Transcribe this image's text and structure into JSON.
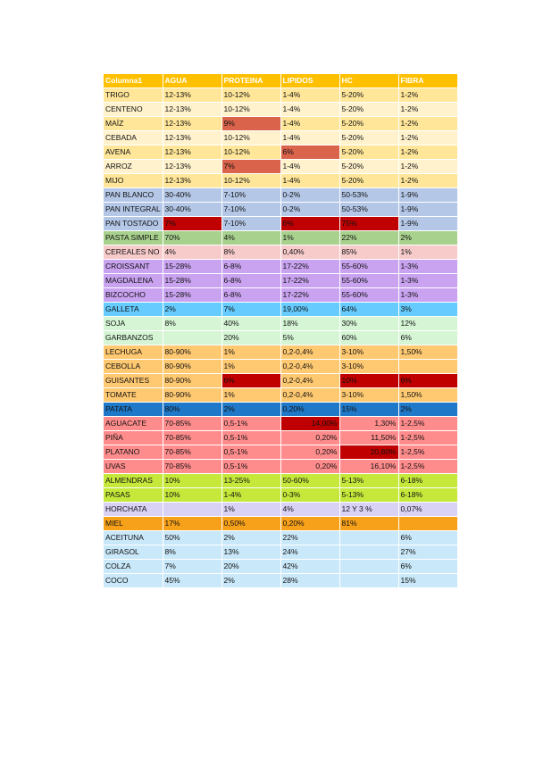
{
  "headers": [
    "Columna1",
    "AGUA",
    "PROTEINA",
    "LIPIDOS",
    "HC",
    "FIBRA"
  ],
  "header_color": "#FFC000",
  "rows": [
    {
      "color": "#FFE699",
      "cells": [
        "TRIGO",
        "12-13%",
        "10-12%",
        "1-4%",
        "5-20%",
        "1-2%"
      ]
    },
    {
      "color": "#FFF2CC",
      "cells": [
        "CENTENO",
        "12-13%",
        "10-12%",
        "1-4%",
        "5-20%",
        "1-2%"
      ]
    },
    {
      "color": "#FFE699",
      "cells": [
        "MAÍZ",
        "12-13%",
        "9%",
        "1-4%",
        "5-20%",
        "1-2%"
      ],
      "hl": {
        "2": "#D9634B"
      }
    },
    {
      "color": "#FFF2CC",
      "cells": [
        "CEBADA",
        "12-13%",
        "10-12%",
        "1-4%",
        "5-20%",
        "1-2%"
      ]
    },
    {
      "color": "#FFE699",
      "cells": [
        "AVENA",
        "12-13%",
        "10-12%",
        "6%",
        "5-20%",
        "1-2%"
      ],
      "hl": {
        "3": "#D9634B"
      }
    },
    {
      "color": "#FFF2CC",
      "cells": [
        "ARROZ",
        "12-13%",
        "7%",
        "1-4%",
        "5-20%",
        "1-2%"
      ],
      "hl": {
        "2": "#D9634B"
      }
    },
    {
      "color": "#FFE699",
      "cells": [
        "MIJO",
        "12-13%",
        "10-12%",
        "1-4%",
        "5-20%",
        "1-2%"
      ]
    },
    {
      "color": "#B4C7E7",
      "cells": [
        "PAN BLANCO",
        "30-40%",
        "7-10%",
        "0-2%",
        "50-53%",
        "1-9%"
      ]
    },
    {
      "color": "#B4C7E7",
      "cells": [
        "PAN INTEGRAL",
        "30-40%",
        "7-10%",
        "0-2%",
        "50-53%",
        "1-9%"
      ]
    },
    {
      "color": "#B4C7E7",
      "cells": [
        "PAN TOSTADO",
        "7%",
        "7-10%",
        "6%",
        "75%",
        "1-9%"
      ],
      "hl": {
        "1": "#C00000",
        "3": "#C00000",
        "4": "#C00000"
      }
    },
    {
      "color": "#A9D18E",
      "cells": [
        "PASTA SIMPLE",
        "70%",
        "4%",
        "1%",
        "22%",
        "2%"
      ]
    },
    {
      "color": "#F8CBCB",
      "cells": [
        "CEREALES NO",
        "4%",
        "8%",
        "0,40%",
        "85%",
        "1%"
      ]
    },
    {
      "color": "#C9A3F0",
      "cells": [
        "CROISSANT",
        "15-28%",
        "6-8%",
        "17-22%",
        "55-60%",
        "1-3%"
      ]
    },
    {
      "color": "#C9A3F0",
      "cells": [
        "MAGDALENA",
        "15-28%",
        "6-8%",
        "17-22%",
        "55-60%",
        "1-3%"
      ]
    },
    {
      "color": "#C9A3F0",
      "cells": [
        "BIZCOCHO",
        "15-28%",
        "6-8%",
        "17-22%",
        "55-60%",
        "1-3%"
      ]
    },
    {
      "color": "#66CCFF",
      "cells": [
        "GALLETA",
        "2%",
        "7%",
        "19,00%",
        "64%",
        "3%"
      ]
    },
    {
      "color": "#D5F5D5",
      "cells": [
        "SOJA",
        "8%",
        "40%",
        "18%",
        "30%",
        "12%"
      ]
    },
    {
      "color": "#D5F5D5",
      "cells": [
        "GARBANZOS",
        "",
        "20%",
        "5%",
        "60%",
        "6%"
      ]
    },
    {
      "color": "#FFC971",
      "cells": [
        "LECHUGA",
        "80-90%",
        "1%",
        "0,2-0,4%",
        "3-10%",
        "1,50%"
      ]
    },
    {
      "color": "#FFC971",
      "cells": [
        "CEBOLLA",
        "80-90%",
        "1%",
        "0,2-0,4%",
        "3-10%",
        ""
      ]
    },
    {
      "color": "#FFC971",
      "cells": [
        "GUISANTES",
        "80-90%",
        "6%",
        "0,2-0,4%",
        "10%",
        "6%"
      ],
      "hl": {
        "2": "#C00000",
        "4": "#C00000",
        "5": "#C00000"
      }
    },
    {
      "color": "#FFC971",
      "cells": [
        "TOMATE",
        "80-90%",
        "1%",
        "0,2-0,4%",
        "3-10%",
        "1,50%"
      ]
    },
    {
      "color": "#1F78C8",
      "cells": [
        "PATATA",
        "80%",
        "2%",
        "0,20%",
        "15%",
        "2%"
      ]
    },
    {
      "color": "#FF8C8C",
      "cells": [
        "AGUACATE",
        "70-85%",
        "0,5-1%",
        "14,00%",
        "1,30%",
        "1-2,5%"
      ],
      "hl": {
        "3": "#C00000"
      },
      "right": [
        3,
        4
      ]
    },
    {
      "color": "#FF8C8C",
      "cells": [
        "PIÑA",
        "70-85%",
        "0,5-1%",
        "0,20%",
        "11,50%",
        "1-2,5%"
      ],
      "right": [
        3,
        4
      ]
    },
    {
      "color": "#FF8C8C",
      "cells": [
        "PLATANO",
        "70-85%",
        "0,5-1%",
        "0,20%",
        "20,80%",
        "1-2,5%"
      ],
      "hl": {
        "4": "#C00000"
      },
      "right": [
        3,
        4
      ]
    },
    {
      "color": "#FF8C8C",
      "cells": [
        "UVAS",
        "70-85%",
        "0,5-1%",
        "0,20%",
        "16,10%",
        "1-2,5%"
      ],
      "right": [
        3,
        4
      ]
    },
    {
      "color": "#C5E83A",
      "cells": [
        "ALMENDRAS",
        "10%",
        "13-25%",
        "50-60%",
        "5-13%",
        "6-18%"
      ]
    },
    {
      "color": "#C5E83A",
      "cells": [
        "PASAS",
        "10%",
        "1-4%",
        "0-3%",
        "5-13%",
        "6-18%"
      ]
    },
    {
      "color": "#D9D2F5",
      "cells": [
        "HORCHATA",
        "",
        "1%",
        "4%",
        "12 Y 3 %",
        "0,07%"
      ]
    },
    {
      "color": "#F7A11A",
      "cells": [
        "MIEL",
        "17%",
        "0,50%",
        "0,20%",
        "81%",
        ""
      ]
    },
    {
      "color": "#C9E8F9",
      "cells": [
        "ACEITUNA",
        "50%",
        "2%",
        "22%",
        "",
        "6%"
      ]
    },
    {
      "color": "#C9E8F9",
      "cells": [
        "GIRASOL",
        "8%",
        "13%",
        "24%",
        "",
        "27%"
      ]
    },
    {
      "color": "#C9E8F9",
      "cells": [
        "COLZA",
        "7%",
        "20%",
        "42%",
        "",
        "6%"
      ]
    },
    {
      "color": "#C9E8F9",
      "cells": [
        "COCO",
        "45%",
        "2%",
        "28%",
        "",
        "15%"
      ]
    }
  ]
}
